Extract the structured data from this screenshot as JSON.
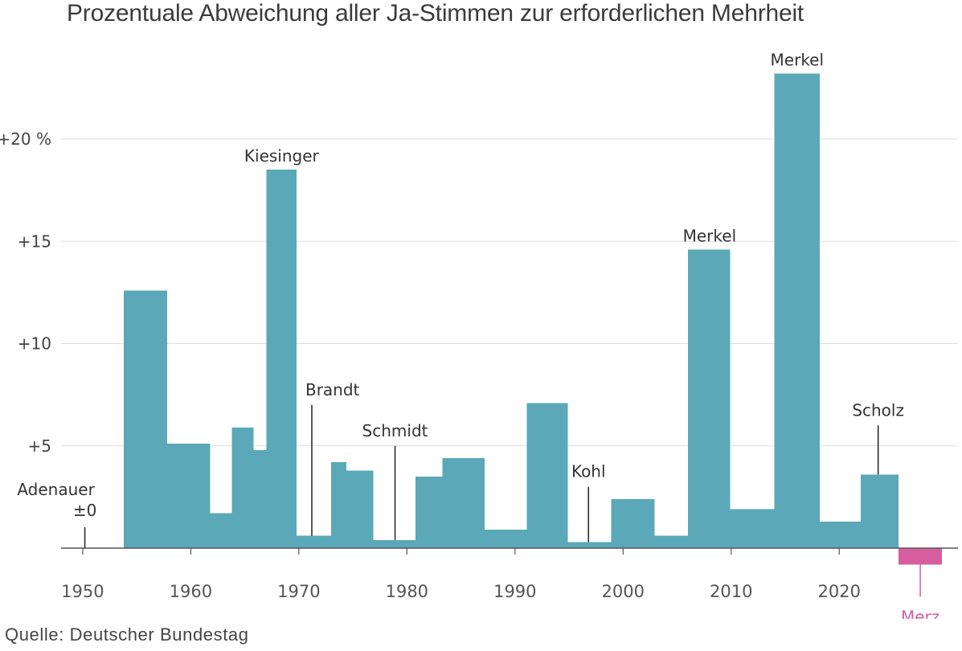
{
  "chart_data": {
    "type": "bar",
    "title": "Prozentuale Abweichung aller Ja-Stimmen zur erforderlichen Mehrheit",
    "source": "Quelle: Deutscher Bundestag",
    "ylim": [
      -0.8,
      23.5
    ],
    "xlim": [
      1948,
      2029.5
    ],
    "y_ticks": [
      {
        "value": 5,
        "label": "+5"
      },
      {
        "value": 10,
        "label": "+10"
      },
      {
        "value": 15,
        "label": "+15"
      },
      {
        "value": 20,
        "label": "+20 %"
      }
    ],
    "x_ticks": [
      {
        "value": 1950,
        "label": "1950"
      },
      {
        "value": 1960,
        "label": "1960"
      },
      {
        "value": 1970,
        "label": "1970"
      },
      {
        "value": 1980,
        "label": "1980"
      },
      {
        "value": 1990,
        "label": "1990"
      },
      {
        "value": 2000,
        "label": "2000"
      },
      {
        "value": 2010,
        "label": "2010"
      },
      {
        "value": 2020,
        "label": "2020"
      }
    ],
    "grid": true,
    "colors": {
      "bar": "#5ba8b8",
      "negative": "#d65e9f",
      "text": "#333333",
      "grid": "#dddddd"
    },
    "bars": [
      {
        "start": 1953.8,
        "end": 1957.8,
        "value": 12.6
      },
      {
        "start": 1957.8,
        "end": 1961.8,
        "value": 5.1
      },
      {
        "start": 1961.8,
        "end": 1963.8,
        "value": 1.7
      },
      {
        "start": 1963.8,
        "end": 1965.8,
        "value": 5.9
      },
      {
        "start": 1965.8,
        "end": 1967.0,
        "value": 4.8
      },
      {
        "start": 1967.0,
        "end": 1969.8,
        "value": 18.5
      },
      {
        "start": 1969.8,
        "end": 1973.0,
        "value": 0.6
      },
      {
        "start": 1973.0,
        "end": 1974.4,
        "value": 4.2
      },
      {
        "start": 1974.4,
        "end": 1976.9,
        "value": 3.8
      },
      {
        "start": 1976.9,
        "end": 1980.8,
        "value": 0.4
      },
      {
        "start": 1980.8,
        "end": 1983.3,
        "value": 3.5
      },
      {
        "start": 1983.3,
        "end": 1987.2,
        "value": 4.4
      },
      {
        "start": 1987.2,
        "end": 1991.1,
        "value": 0.9
      },
      {
        "start": 1991.1,
        "end": 1994.9,
        "value": 7.1
      },
      {
        "start": 1994.9,
        "end": 1998.9,
        "value": 0.3
      },
      {
        "start": 1998.9,
        "end": 2002.9,
        "value": 2.4
      },
      {
        "start": 2002.9,
        "end": 2006.0,
        "value": 0.6
      },
      {
        "start": 2006.0,
        "end": 2009.9,
        "value": 14.6
      },
      {
        "start": 2009.9,
        "end": 2014.0,
        "value": 1.9
      },
      {
        "start": 2014.0,
        "end": 2018.2,
        "value": 23.2
      },
      {
        "start": 2018.2,
        "end": 2022.0,
        "value": 1.3
      },
      {
        "start": 2022.0,
        "end": 2025.5,
        "value": 3.6
      },
      {
        "start": 2025.5,
        "end": 2029.5,
        "value": -0.8,
        "negative": true
      }
    ],
    "annotations": [
      {
        "label": "Adenauer",
        "sub": "±0",
        "x": 1950.2,
        "value": 0,
        "leader": true,
        "align": "end"
      },
      {
        "label": "Kiesinger",
        "x": 1968.4,
        "value": 18.5,
        "leader": false
      },
      {
        "label": "Brandt",
        "x": 1971.2,
        "value": 7.0,
        "leader": true
      },
      {
        "label": "Schmidt",
        "x": 1978.9,
        "value": 5.0,
        "leader": true
      },
      {
        "label": "Kohl",
        "x": 1996.8,
        "value": 3.0,
        "leader": true
      },
      {
        "label": "Merkel",
        "x": 2008.0,
        "value": 14.6,
        "leader": false
      },
      {
        "label": "Merkel",
        "x": 2016.1,
        "value": 23.2,
        "leader": false
      },
      {
        "label": "Scholz",
        "x": 2023.6,
        "value": 6.0,
        "leader": true
      },
      {
        "label": "Merz",
        "x": 2027.5,
        "value": -0.8,
        "leader": true,
        "below": true,
        "negative": true
      }
    ]
  }
}
